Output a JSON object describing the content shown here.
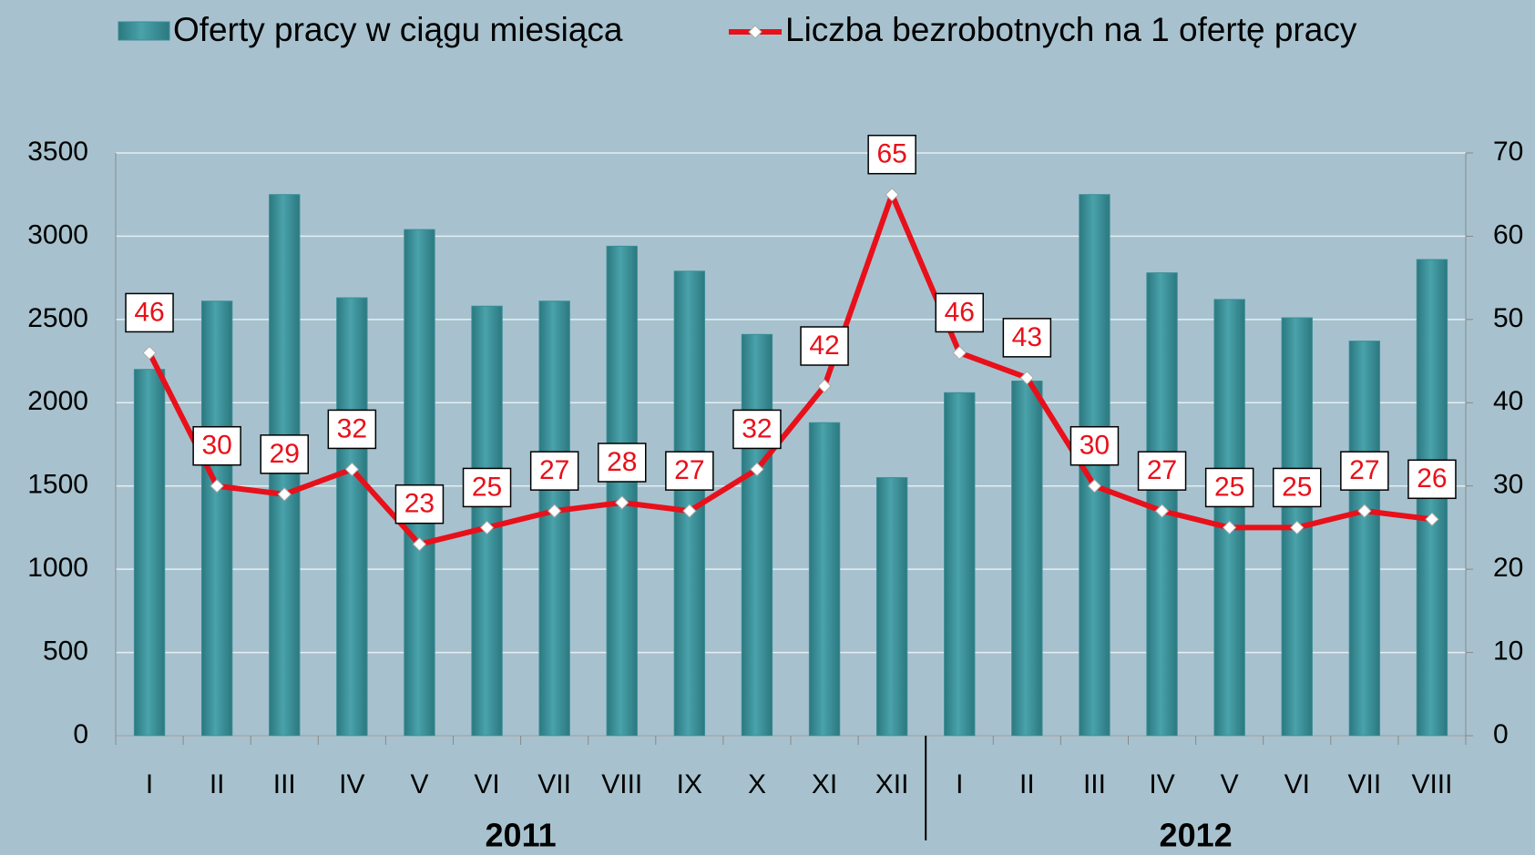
{
  "chart_data": {
    "type": "bar",
    "categories": [
      "I",
      "II",
      "III",
      "IV",
      "V",
      "VI",
      "VII",
      "VIII",
      "IX",
      "X",
      "XI",
      "XII",
      "I",
      "II",
      "III",
      "IV",
      "V",
      "VI",
      "VII",
      "VIII"
    ],
    "years": [
      "2011",
      "2012"
    ],
    "series": [
      {
        "name": "Oferty pracy w ciągu miesiąca",
        "type": "bar",
        "color": "#3a8e96",
        "values": [
          2200,
          2610,
          3250,
          2630,
          3040,
          2580,
          2610,
          2940,
          2790,
          2410,
          1880,
          1550,
          2060,
          2130,
          3250,
          2780,
          2620,
          2510,
          2370,
          2860
        ]
      },
      {
        "name": "Liczba bezrobotnych na 1 ofertę pracy",
        "type": "line",
        "axis": "y2",
        "color": "#e8101a",
        "values": [
          46,
          30,
          29,
          32,
          23,
          25,
          27,
          28,
          27,
          32,
          42,
          65,
          46,
          43,
          30,
          27,
          25,
          25,
          27,
          26
        ]
      }
    ],
    "ylim": [
      0,
      3500
    ],
    "yticks": [
      0,
      500,
      1000,
      1500,
      2000,
      2500,
      3000,
      3500
    ],
    "y2lim": [
      0,
      70
    ],
    "y2ticks": [
      0,
      10,
      20,
      30,
      40,
      50,
      60,
      70
    ],
    "grid": true,
    "legend": "top"
  }
}
